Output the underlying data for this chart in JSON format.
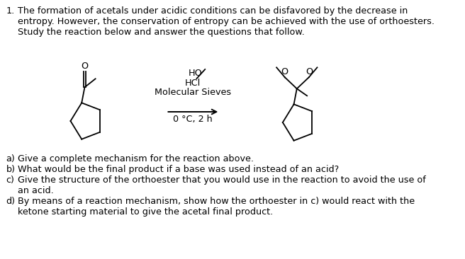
{
  "title_num": "1.",
  "line1": "The formation of acetals under acidic conditions can be disfavored by the decrease in",
  "line2": "entropy. However, the conservation of entropy can be achieved with the use of orthoesters.",
  "line3": "Study the reaction below and answer the questions that follow.",
  "reagent_line1": "HO",
  "reagent_line2": "HCl",
  "reagent_line3": "Molecular Sieves",
  "reagent_line4": "0 °C, 2 h",
  "qa": "a)",
  "qb": "b)",
  "qc": "c)",
  "qd": "d)",
  "qa_text": "Give a complete mechanism for the reaction above.",
  "qb_text": "What would be the final product if a base was used instead of an acid?",
  "qc_text": "Give the structure of the orthoester that you would use in the reaction to avoid the use of",
  "qc_text2": "an acid.",
  "qd_text": "By means of a reaction mechanism, show how the orthoester in c) would react with the",
  "qd_text2": "ketone starting material to give the acetal final product.",
  "bg_color": "#ffffff",
  "text_color": "#000000",
  "font_size": 9.2
}
